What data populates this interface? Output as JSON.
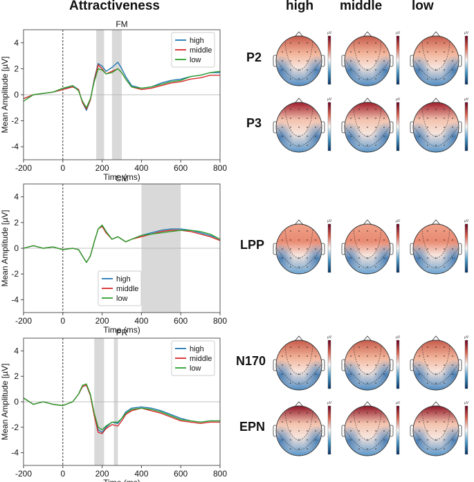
{
  "figure": {
    "title": "Attractiveness",
    "topomap_columns": [
      "high",
      "middle",
      "low"
    ],
    "topomap_rows": [
      "P2",
      "P3",
      "LPP",
      "N170",
      "EPN"
    ],
    "colorbar_unit": "µV"
  },
  "colors": {
    "high": "#1f77b4",
    "middle": "#d62728",
    "low": "#2ca02c",
    "shade": "#d9d9d9"
  },
  "chart_data": [
    {
      "type": "line",
      "title": "FM",
      "xlabel": "Time (ms)",
      "ylabel": "Mean Amplitude [µV]",
      "xlim": [
        -200,
        800
      ],
      "ylim": [
        -5,
        5
      ],
      "xticks": [
        "-200",
        "0",
        "200",
        "400",
        "600",
        "800"
      ],
      "yticks": [
        "4",
        "2",
        "0",
        "-2",
        "-4"
      ],
      "legend": "top-right",
      "shaded_windows": [
        [
          170,
          210
        ],
        [
          250,
          300
        ]
      ],
      "x": [
        -200,
        -150,
        -100,
        -50,
        0,
        50,
        80,
        100,
        120,
        140,
        160,
        180,
        200,
        220,
        250,
        280,
        300,
        320,
        350,
        400,
        450,
        500,
        550,
        600,
        650,
        700,
        750,
        800
      ],
      "series": [
        {
          "name": "high",
          "values": [
            -0.3,
            0.0,
            0.1,
            0.2,
            0.4,
            0.7,
            0.4,
            -0.6,
            -1.2,
            -0.4,
            1.2,
            2.4,
            2.2,
            1.8,
            2.1,
            2.5,
            2.0,
            1.4,
            0.7,
            0.5,
            0.6,
            0.9,
            1.1,
            1.2,
            1.4,
            1.5,
            1.7,
            1.7
          ]
        },
        {
          "name": "middle",
          "values": [
            -0.3,
            0.0,
            0.1,
            0.2,
            0.4,
            0.6,
            0.4,
            -0.6,
            -1.1,
            -0.4,
            1.1,
            2.3,
            2.0,
            1.6,
            1.8,
            2.0,
            1.7,
            1.2,
            0.6,
            0.4,
            0.5,
            0.7,
            0.9,
            1.0,
            1.2,
            1.3,
            1.5,
            1.5
          ]
        },
        {
          "name": "low",
          "values": [
            -0.5,
            0.0,
            0.1,
            0.2,
            0.5,
            0.7,
            0.3,
            -0.5,
            -1.0,
            -0.3,
            1.0,
            2.0,
            1.9,
            1.6,
            1.7,
            2.0,
            1.7,
            1.2,
            0.6,
            0.5,
            0.6,
            0.8,
            1.0,
            1.1,
            1.4,
            1.5,
            1.7,
            1.8
          ]
        }
      ]
    },
    {
      "type": "line",
      "title": "CM",
      "xlabel": "Time (ms)",
      "ylabel": "Mean Amplitude [µV]",
      "xlim": [
        -200,
        800
      ],
      "ylim": [
        -5,
        5
      ],
      "xticks": [
        "-200",
        "0",
        "200",
        "400",
        "600",
        "800"
      ],
      "yticks": [
        "4",
        "2",
        "0",
        "-2",
        "-4"
      ],
      "legend": "bottom-center",
      "shaded_windows": [
        [
          400,
          600
        ]
      ],
      "x": [
        -200,
        -150,
        -100,
        -50,
        0,
        50,
        80,
        100,
        120,
        140,
        160,
        180,
        200,
        220,
        250,
        280,
        300,
        320,
        350,
        400,
        450,
        500,
        550,
        600,
        650,
        700,
        750,
        800
      ],
      "series": [
        {
          "name": "high",
          "values": [
            0.0,
            0.2,
            0.0,
            0.1,
            -0.1,
            0.0,
            -0.1,
            -0.6,
            -1.1,
            -0.6,
            0.5,
            1.5,
            1.8,
            1.3,
            0.7,
            0.9,
            0.7,
            0.5,
            0.7,
            1.0,
            1.2,
            1.4,
            1.5,
            1.5,
            1.4,
            1.2,
            1.0,
            0.7
          ]
        },
        {
          "name": "middle",
          "values": [
            0.0,
            0.2,
            0.0,
            0.1,
            -0.1,
            0.0,
            -0.1,
            -0.6,
            -1.1,
            -0.6,
            0.5,
            1.5,
            1.7,
            1.2,
            0.7,
            0.9,
            0.7,
            0.5,
            0.7,
            0.9,
            1.1,
            1.3,
            1.4,
            1.4,
            1.3,
            1.1,
            0.9,
            0.6
          ]
        },
        {
          "name": "low",
          "values": [
            0.0,
            0.2,
            0.0,
            0.1,
            -0.1,
            0.0,
            -0.1,
            -0.6,
            -1.1,
            -0.6,
            0.5,
            1.5,
            1.8,
            1.3,
            0.7,
            0.9,
            0.7,
            0.5,
            0.7,
            1.0,
            1.1,
            1.2,
            1.3,
            1.4,
            1.4,
            1.3,
            1.1,
            0.7
          ]
        }
      ]
    },
    {
      "type": "line",
      "title": "PR",
      "xlabel": "Time (ms)",
      "ylabel": "Mean Amplitude [µV]",
      "xlim": [
        -200,
        800
      ],
      "ylim": [
        -5,
        5
      ],
      "xticks": [
        "-200",
        "0",
        "200",
        "400",
        "600",
        "800"
      ],
      "yticks": [
        "4",
        "2",
        "0",
        "-2",
        "-4"
      ],
      "legend": "top-right",
      "shaded_windows": [
        [
          160,
          210
        ],
        [
          260,
          280
        ]
      ],
      "x": [
        -200,
        -150,
        -100,
        -50,
        0,
        50,
        80,
        100,
        120,
        140,
        160,
        180,
        200,
        220,
        250,
        280,
        300,
        320,
        350,
        400,
        450,
        500,
        550,
        600,
        650,
        700,
        750,
        800
      ],
      "series": [
        {
          "name": "high",
          "values": [
            0.3,
            -0.2,
            0.0,
            -0.2,
            -0.3,
            0.0,
            0.6,
            1.2,
            1.3,
            0.5,
            -1.0,
            -2.2,
            -2.4,
            -2.0,
            -1.6,
            -1.7,
            -1.3,
            -0.8,
            -0.5,
            -0.4,
            -0.5,
            -0.7,
            -1.0,
            -1.3,
            -1.5,
            -1.6,
            -1.5,
            -1.5
          ]
        },
        {
          "name": "middle",
          "values": [
            0.3,
            -0.2,
            0.0,
            -0.2,
            -0.3,
            0.0,
            0.6,
            1.2,
            1.3,
            0.5,
            -1.1,
            -2.4,
            -2.5,
            -2.1,
            -1.8,
            -1.9,
            -1.5,
            -1.0,
            -0.7,
            -0.5,
            -0.7,
            -0.9,
            -1.2,
            -1.5,
            -1.6,
            -1.7,
            -1.6,
            -1.6
          ]
        },
        {
          "name": "low",
          "values": [
            0.3,
            -0.2,
            0.0,
            -0.2,
            -0.3,
            0.0,
            0.6,
            1.3,
            1.4,
            0.6,
            -0.9,
            -2.0,
            -2.2,
            -1.9,
            -1.6,
            -1.6,
            -1.3,
            -0.9,
            -0.6,
            -0.5,
            -0.6,
            -0.8,
            -1.1,
            -1.4,
            -1.5,
            -1.6,
            -1.5,
            -1.5
          ]
        }
      ]
    }
  ]
}
